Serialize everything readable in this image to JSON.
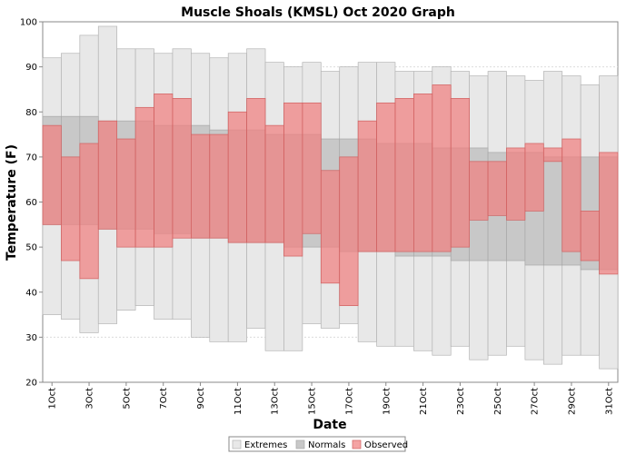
{
  "chart_data": {
    "type": "bar",
    "title": "Muscle Shoals (KMSL) Oct 2020 Graph",
    "xlabel": "Date",
    "ylabel": "Temperature (F)",
    "ylim": [
      20,
      100
    ],
    "yticks": [
      20,
      30,
      40,
      50,
      60,
      70,
      80,
      90,
      100
    ],
    "grid": true,
    "legend_position": "bottom",
    "colors": {
      "extremes": "#e8e8e8",
      "normals": "#c8c8c8",
      "observed": "#f08080"
    },
    "xtick_labels": [
      "1Oct",
      "3Oct",
      "5Oct",
      "7Oct",
      "9Oct",
      "11Oct",
      "13Oct",
      "15Oct",
      "17Oct",
      "19Oct",
      "21Oct",
      "23Oct",
      "25Oct",
      "27Oct",
      "29Oct",
      "31Oct"
    ],
    "days": [
      1,
      2,
      3,
      4,
      5,
      6,
      7,
      8,
      9,
      10,
      11,
      12,
      13,
      14,
      15,
      16,
      17,
      18,
      19,
      20,
      21,
      22,
      23,
      24,
      25,
      26,
      27,
      28,
      29,
      30,
      31
    ],
    "series": [
      {
        "name": "Extremes",
        "high": [
          92,
          93,
          97,
          99,
          94,
          94,
          93,
          94,
          93,
          92,
          93,
          94,
          91,
          90,
          91,
          89,
          90,
          91,
          91,
          89,
          89,
          90,
          89,
          88,
          89,
          88,
          87,
          89,
          88,
          86,
          88
        ],
        "low": [
          35,
          34,
          31,
          33,
          36,
          37,
          34,
          34,
          30,
          29,
          29,
          32,
          27,
          27,
          33,
          32,
          33,
          29,
          28,
          28,
          27,
          26,
          28,
          25,
          26,
          28,
          25,
          24,
          26,
          26,
          23
        ]
      },
      {
        "name": "Normals",
        "high": [
          79,
          79,
          79,
          78,
          78,
          78,
          77,
          77,
          77,
          76,
          76,
          76,
          75,
          75,
          75,
          74,
          74,
          74,
          73,
          73,
          73,
          72,
          72,
          72,
          71,
          71,
          71,
          70,
          70,
          70,
          70
        ],
        "low": [
          55,
          55,
          55,
          54,
          54,
          54,
          53,
          53,
          52,
          52,
          51,
          51,
          51,
          50,
          50,
          50,
          49,
          49,
          49,
          48,
          48,
          48,
          47,
          47,
          47,
          47,
          46,
          46,
          46,
          45,
          45
        ]
      },
      {
        "name": "Observed",
        "high": [
          77,
          70,
          73,
          78,
          74,
          81,
          84,
          83,
          75,
          75,
          80,
          83,
          77,
          82,
          82,
          67,
          70,
          78,
          82,
          83,
          84,
          86,
          83,
          69,
          69,
          72,
          73,
          72,
          74,
          58,
          71
        ],
        "low": [
          55,
          47,
          43,
          54,
          50,
          50,
          50,
          52,
          52,
          52,
          51,
          51,
          51,
          48,
          53,
          42,
          37,
          49,
          49,
          49,
          49,
          49,
          50,
          56,
          57,
          56,
          58,
          69,
          49,
          47,
          44
        ]
      }
    ]
  }
}
